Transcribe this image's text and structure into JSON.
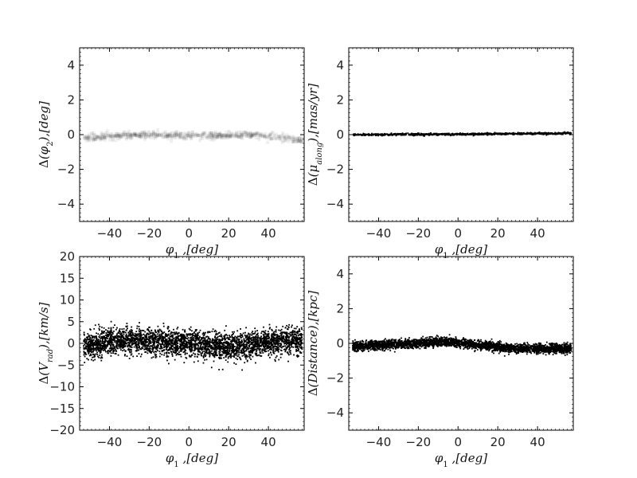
{
  "chart_data": [
    {
      "type": "scatter",
      "panel": "top-left",
      "xlabel": "φ₁ ,[deg]",
      "ylabel": "Δ(φ₂),[deg]",
      "xlim": [
        -55,
        58
      ],
      "ylim": [
        -5,
        5
      ],
      "xticks": [
        -40,
        -20,
        0,
        20,
        40
      ],
      "yticks": [
        -4,
        -2,
        0,
        2,
        4
      ],
      "rendering": "density",
      "trend_x": [
        -52,
        -40,
        -30,
        -20,
        -10,
        0,
        10,
        20,
        30,
        40,
        50,
        56
      ],
      "trend_y": [
        -0.15,
        -0.1,
        -0.05,
        0.0,
        -0.05,
        -0.05,
        -0.05,
        -0.05,
        0.0,
        -0.1,
        -0.2,
        -0.3
      ],
      "spread": 0.1,
      "n_points": 700
    },
    {
      "type": "scatter",
      "panel": "top-right",
      "xlabel": "φ₁ ,[deg]",
      "ylabel": "Δ(μ_along),[mas/yr]",
      "xlim": [
        -55,
        58
      ],
      "ylim": [
        -5,
        5
      ],
      "xticks": [
        -40,
        -20,
        0,
        20,
        40
      ],
      "yticks": [
        -4,
        -2,
        0,
        2,
        4
      ],
      "rendering": "points",
      "trend_x": [
        -55,
        0,
        58
      ],
      "trend_y": [
        0.0,
        0.02,
        0.08
      ],
      "spread": 0.03,
      "n_points": 900
    },
    {
      "type": "scatter",
      "panel": "bottom-left",
      "xlabel": "φ₁ ,[deg]",
      "ylabel": "Δ(V_rad),[km/s]",
      "xlim": [
        -55,
        58
      ],
      "ylim": [
        -20,
        20
      ],
      "xticks": [
        -40,
        -20,
        0,
        20,
        40
      ],
      "yticks": [
        -20,
        -15,
        -10,
        -5,
        0,
        5,
        10,
        15,
        20
      ],
      "rendering": "points",
      "trend_x": [
        -52,
        -40,
        -30,
        -20,
        -10,
        0,
        10,
        20,
        30,
        40,
        50,
        56
      ],
      "trend_y": [
        -0.5,
        0.5,
        0.8,
        0.5,
        0.3,
        0.0,
        -0.5,
        -0.8,
        -0.5,
        0.2,
        0.8,
        0.5
      ],
      "spread": 1.5,
      "n_points": 3500
    },
    {
      "type": "scatter",
      "panel": "bottom-right",
      "xlabel": "φ₁ ,[deg]",
      "ylabel": "Δ(Distance),[kpc]",
      "xlim": [
        -55,
        58
      ],
      "ylim": [
        -5,
        5
      ],
      "xticks": [
        -40,
        -20,
        0,
        20,
        40
      ],
      "yticks": [
        -4,
        -2,
        0,
        2,
        4
      ],
      "rendering": "points",
      "trend_x": [
        -52,
        -40,
        -30,
        -20,
        -10,
        0,
        10,
        20,
        30,
        40,
        50,
        56
      ],
      "trend_y": [
        -0.15,
        -0.1,
        -0.05,
        0.0,
        0.1,
        0.05,
        -0.1,
        -0.2,
        -0.3,
        -0.3,
        -0.3,
        -0.35
      ],
      "spread": 0.13,
      "n_points": 3200
    }
  ]
}
